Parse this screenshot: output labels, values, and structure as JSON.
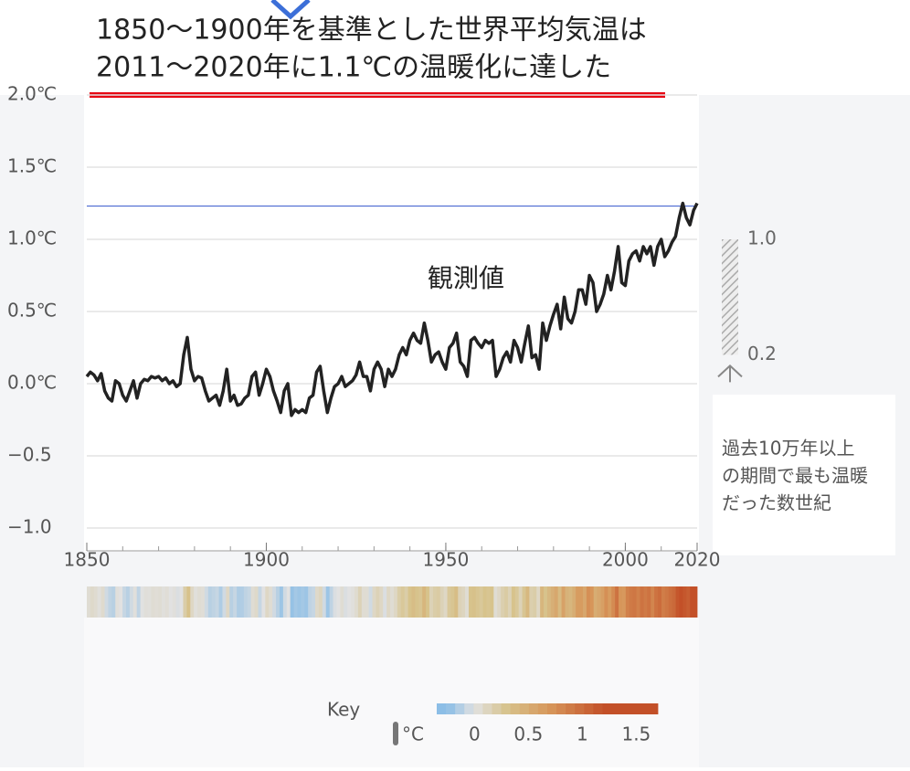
{
  "chart_data": {
    "type": "line",
    "title_lines": [
      "1850〜1900年を基準とした世界平均気温は",
      "2011〜2020年に1.1℃の温暖化に達した"
    ],
    "annotation": "観測値",
    "xlim": [
      1850,
      2020
    ],
    "xticks": [
      1850,
      1900,
      1950,
      2000,
      2020
    ],
    "ylim": [
      -1,
      2
    ],
    "yticks": [
      {
        "value": -1,
        "label": "−1.0"
      },
      {
        "value": -0.5,
        "label": "−0.5"
      },
      {
        "value": 0,
        "label": "0.0℃"
      },
      {
        "value": 0.5,
        "label": "0.5℃"
      },
      {
        "value": 1,
        "label": "1.0℃"
      },
      {
        "value": 1.5,
        "label": "1.5℃"
      },
      {
        "value": 2,
        "label": "2.0℃"
      }
    ],
    "grid": true,
    "reference_line": 1.23,
    "series": [
      {
        "color": "#222222",
        "values": [
          0.05,
          0.08,
          0.06,
          0.02,
          0.07,
          -0.05,
          -0.1,
          -0.12,
          0.02,
          0.0,
          -0.08,
          -0.12,
          -0.05,
          0.02,
          -0.1,
          0.0,
          0.03,
          0.02,
          0.05,
          0.04,
          0.05,
          0.02,
          0.04,
          0.0,
          0.02,
          -0.02,
          0.0,
          0.2,
          0.32,
          0.1,
          0.02,
          0.05,
          0.04,
          -0.05,
          -0.12,
          -0.1,
          -0.08,
          -0.15,
          -0.05,
          0.1,
          -0.12,
          -0.08,
          -0.15,
          -0.14,
          -0.1,
          -0.08,
          0.05,
          0.08,
          -0.08,
          0.0,
          0.1,
          0.05,
          -0.05,
          -0.12,
          -0.2,
          -0.05,
          0.0,
          -0.22,
          -0.18,
          -0.2,
          -0.18,
          -0.2,
          -0.1,
          -0.08,
          0.08,
          0.12,
          -0.05,
          -0.2,
          -0.1,
          -0.02,
          0.0,
          0.05,
          -0.02,
          0.0,
          0.02,
          0.06,
          0.15,
          0.05,
          0.05,
          -0.05,
          0.1,
          0.15,
          0.1,
          -0.02,
          0.1,
          0.05,
          0.1,
          0.2,
          0.25,
          0.2,
          0.3,
          0.35,
          0.3,
          0.28,
          0.42,
          0.3,
          0.15,
          0.2,
          0.22,
          0.15,
          0.1,
          0.25,
          0.28,
          0.35,
          0.15,
          0.12,
          0.05,
          0.3,
          0.32,
          0.28,
          0.25,
          0.3,
          0.28,
          0.3,
          0.05,
          0.1,
          0.18,
          0.22,
          0.15,
          0.3,
          0.25,
          0.15,
          0.28,
          0.4,
          0.18,
          0.2,
          0.1,
          0.42,
          0.3,
          0.4,
          0.48,
          0.55,
          0.38,
          0.6,
          0.45,
          0.42,
          0.5,
          0.65,
          0.65,
          0.55,
          0.75,
          0.7,
          0.5,
          0.55,
          0.62,
          0.75,
          0.65,
          0.78,
          0.95,
          0.7,
          0.68,
          0.85,
          0.9,
          0.92,
          0.85,
          0.95,
          0.9,
          0.95,
          0.82,
          0.95,
          1.0,
          0.88,
          0.92,
          0.98,
          1.02,
          1.15,
          1.25,
          1.15,
          1.1,
          1.2,
          1.25
        ]
      }
    ],
    "paleo_range": {
      "values": [
        1.0,
        0.2
      ],
      "value_labels": [
        "1.0",
        "0.2"
      ],
      "note_lines": [
        "過去10万年以上",
        "の期間で最も温暖",
        "だった数世紀"
      ]
    },
    "key": {
      "label": "Key",
      "unit": "°C",
      "range": [
        -0.35,
        1.7
      ],
      "ticks": [
        0,
        0.5,
        1,
        1.5
      ]
    }
  }
}
